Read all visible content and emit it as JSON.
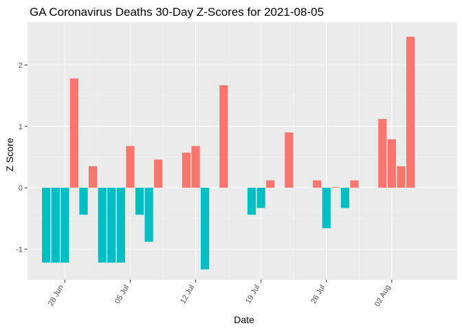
{
  "chart_data": {
    "type": "bar",
    "title": "GA Coronavirus Deaths 30-Day Z-Scores for 2021-08-05",
    "xlabel": "Date",
    "ylabel": "Z Score",
    "x_start": "2021-06-26",
    "x": [
      "2021-06-26",
      "2021-06-27",
      "2021-06-28",
      "2021-06-29",
      "2021-06-30",
      "2021-07-01",
      "2021-07-02",
      "2021-07-03",
      "2021-07-04",
      "2021-07-05",
      "2021-07-06",
      "2021-07-07",
      "2021-07-08",
      "2021-07-09",
      "2021-07-10",
      "2021-07-11",
      "2021-07-12",
      "2021-07-13",
      "2021-07-14",
      "2021-07-15",
      "2021-07-16",
      "2021-07-17",
      "2021-07-18",
      "2021-07-19",
      "2021-07-20",
      "2021-07-21",
      "2021-07-22",
      "2021-07-23",
      "2021-07-24",
      "2021-07-25",
      "2021-07-26",
      "2021-07-27",
      "2021-07-28",
      "2021-07-29",
      "2021-07-30",
      "2021-07-31",
      "2021-08-01",
      "2021-08-02",
      "2021-08-03",
      "2021-08-04",
      "2021-08-05"
    ],
    "values": [
      -1.22,
      -1.22,
      -1.22,
      1.78,
      -0.44,
      0.35,
      -1.22,
      -1.22,
      -1.22,
      0.68,
      -0.44,
      -0.88,
      0.46,
      null,
      null,
      0.57,
      0.68,
      -1.33,
      null,
      1.67,
      null,
      null,
      -0.44,
      -0.33,
      0.12,
      null,
      0.9,
      null,
      null,
      0.12,
      -0.66,
      0.01,
      -0.33,
      0.12,
      null,
      null,
      1.12,
      0.79,
      0.35,
      2.46,
      null
    ],
    "x_ticks": [
      "28 Jun",
      "05 Jul",
      "12 Jul",
      "19 Jul",
      "26 Jul",
      "02 Aug"
    ],
    "x_tick_dates": [
      "2021-06-28",
      "2021-07-05",
      "2021-07-12",
      "2021-07-19",
      "2021-07-26",
      "2021-08-02"
    ],
    "y_ticks": [
      "-1",
      "0",
      "1",
      "2"
    ],
    "y_tick_values": [
      -1,
      0,
      1,
      2
    ],
    "ylim": [
      -1.5,
      2.7
    ],
    "xlim": [
      "2021-06-24",
      "2021-08-09"
    ],
    "grid": true,
    "legend": "none",
    "colors": {
      "positive": "#F8766D",
      "negative": "#00BFC4",
      "panel": "#EBEBEB",
      "grid_major": "#FFFFFF",
      "grid_minor": "#F5F5F5"
    }
  }
}
